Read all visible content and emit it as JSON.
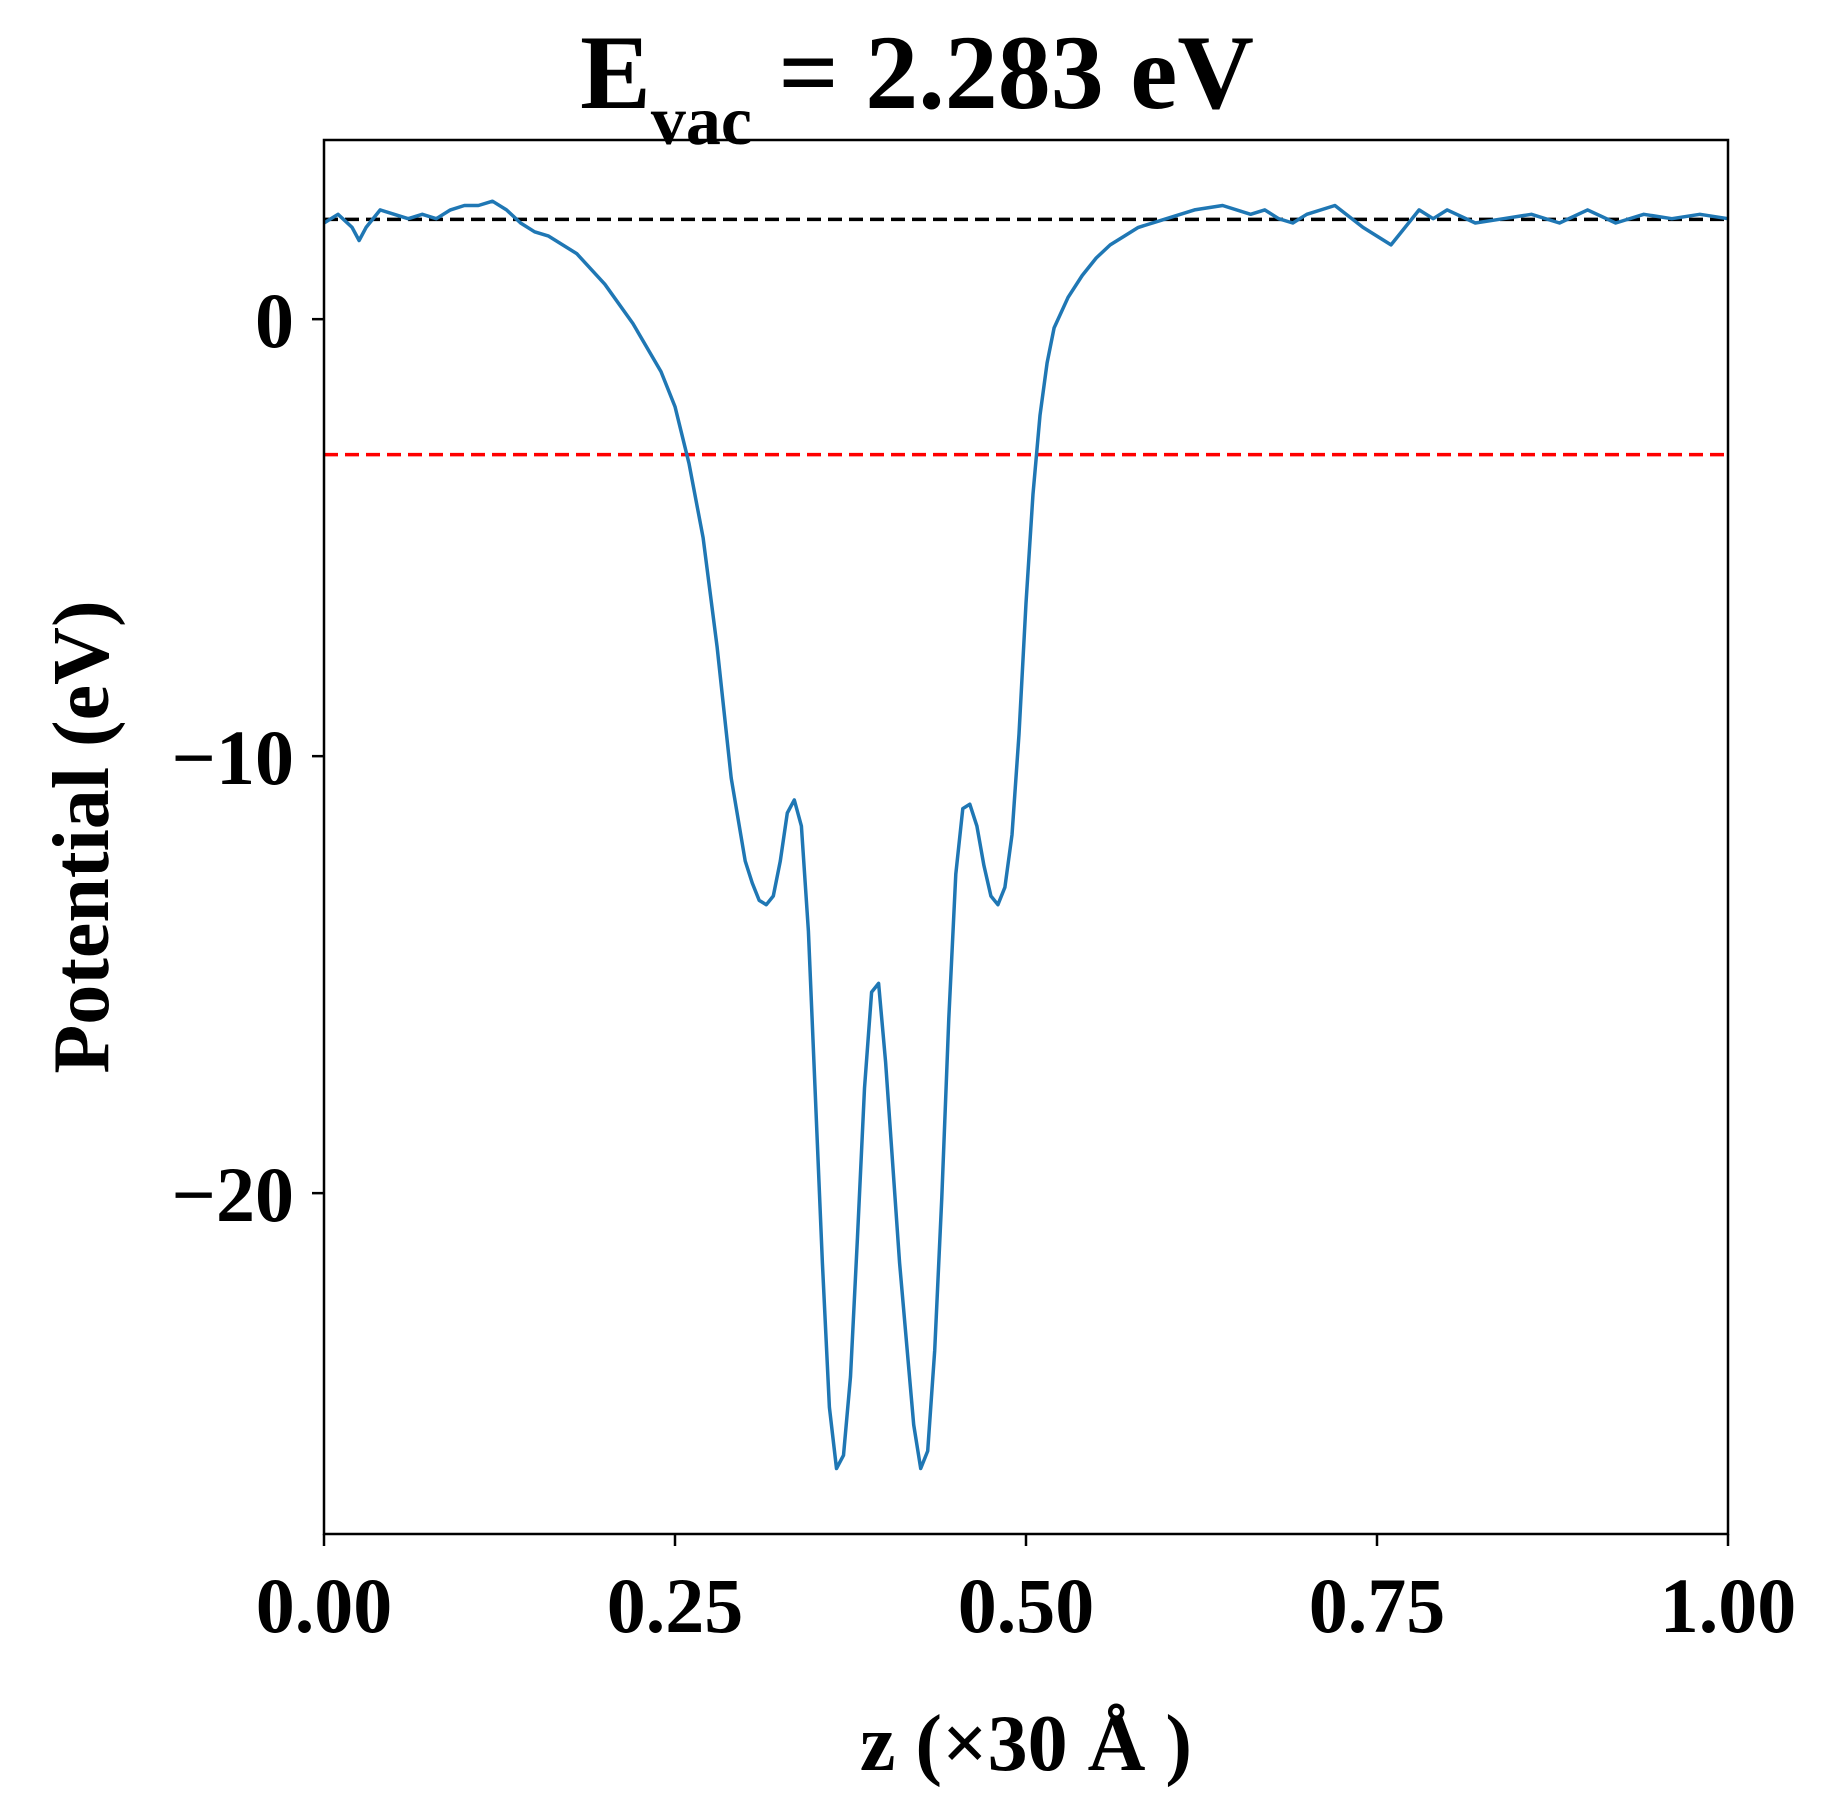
{
  "chart_data": {
    "type": "line",
    "title": {
      "main": "E",
      "subscript": "vac",
      "rest": " = 2.283 eV"
    },
    "xlabel": "z (×30 Å )",
    "ylabel": "Potential (eV)",
    "xlim": [
      0.0,
      1.0
    ],
    "ylim": [
      -27.8,
      4.1
    ],
    "xticks": [
      0.0,
      0.25,
      0.5,
      0.75,
      1.0
    ],
    "xtick_labels": [
      "0.00",
      "0.25",
      "0.50",
      "0.75",
      "1.00"
    ],
    "yticks": [
      0,
      -10,
      -20
    ],
    "ytick_labels": [
      "0",
      "−10",
      "−20"
    ],
    "grid": false,
    "hlines": [
      {
        "y": 2.283,
        "color": "#000000",
        "style": "dashed"
      },
      {
        "y": -3.1,
        "color": "#ff0000",
        "style": "dashed"
      }
    ],
    "series": [
      {
        "color": "#1f77b4",
        "x": [
          0.0,
          0.01,
          0.02,
          0.025,
          0.03,
          0.04,
          0.05,
          0.06,
          0.07,
          0.08,
          0.09,
          0.1,
          0.11,
          0.12,
          0.13,
          0.14,
          0.15,
          0.16,
          0.18,
          0.2,
          0.22,
          0.24,
          0.25,
          0.26,
          0.27,
          0.28,
          0.29,
          0.3,
          0.305,
          0.31,
          0.315,
          0.32,
          0.325,
          0.33,
          0.335,
          0.34,
          0.345,
          0.35,
          0.355,
          0.36,
          0.365,
          0.37,
          0.375,
          0.38,
          0.385,
          0.39,
          0.395,
          0.4,
          0.41,
          0.42,
          0.425,
          0.43,
          0.435,
          0.44,
          0.445,
          0.45,
          0.455,
          0.46,
          0.465,
          0.47,
          0.475,
          0.48,
          0.485,
          0.49,
          0.495,
          0.5,
          0.505,
          0.51,
          0.515,
          0.52,
          0.53,
          0.54,
          0.55,
          0.56,
          0.57,
          0.58,
          0.6,
          0.62,
          0.64,
          0.66,
          0.67,
          0.68,
          0.69,
          0.7,
          0.72,
          0.74,
          0.76,
          0.78,
          0.79,
          0.8,
          0.82,
          0.84,
          0.86,
          0.88,
          0.9,
          0.92,
          0.94,
          0.96,
          0.98,
          1.0
        ],
        "y": [
          2.2,
          2.4,
          2.1,
          1.8,
          2.1,
          2.5,
          2.4,
          2.3,
          2.4,
          2.3,
          2.5,
          2.6,
          2.6,
          2.7,
          2.5,
          2.2,
          2.0,
          1.9,
          1.5,
          0.8,
          -0.1,
          -1.2,
          -2.0,
          -3.3,
          -5.0,
          -7.5,
          -10.5,
          -12.4,
          -12.9,
          -13.3,
          -13.4,
          -13.2,
          -12.4,
          -11.3,
          -11.0,
          -11.6,
          -14.0,
          -17.8,
          -21.6,
          -24.9,
          -26.3,
          -26.0,
          -24.2,
          -21.0,
          -17.6,
          -15.4,
          -15.2,
          -17.0,
          -21.6,
          -25.3,
          -26.3,
          -25.9,
          -23.6,
          -20.1,
          -16.0,
          -12.7,
          -11.2,
          -11.1,
          -11.6,
          -12.5,
          -13.2,
          -13.4,
          -13.0,
          -11.8,
          -9.5,
          -6.5,
          -4.0,
          -2.2,
          -1.0,
          -0.2,
          0.5,
          1.0,
          1.4,
          1.7,
          1.9,
          2.1,
          2.3,
          2.5,
          2.6,
          2.4,
          2.5,
          2.3,
          2.2,
          2.4,
          2.6,
          2.1,
          1.7,
          2.5,
          2.3,
          2.5,
          2.2,
          2.3,
          2.4,
          2.2,
          2.5,
          2.2,
          2.4,
          2.3,
          2.4,
          2.3
        ]
      }
    ]
  }
}
